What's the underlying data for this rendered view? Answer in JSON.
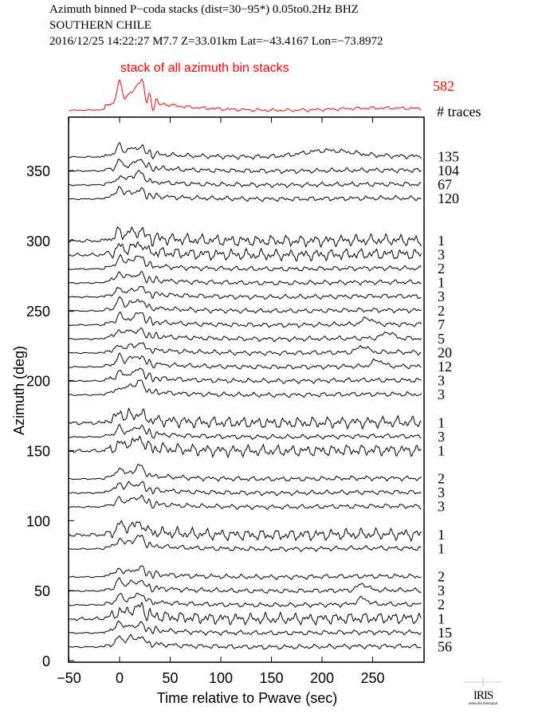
{
  "chart_data": {
    "type": "line",
    "title_lines": [
      "Azimuth binned P−coda stacks (dist=30−95*)  0.05to0.2Hz  BHZ",
      "SOUTHERN CHILE",
      "2016/12/25  14:22:27  M7.7  Z=33.01km Lat=−43.4167 Lon=−73.8972"
    ],
    "stack_label": "stack of all azimuth bin stacks",
    "stack_total_traces": "582",
    "traces_header": "# traces",
    "xlabel": "Time relative to Pwave (sec)",
    "ylabel": "Azimuth (deg)",
    "xlim": [
      -50,
      300
    ],
    "ylim": [
      0,
      380
    ],
    "xticks": [
      -50,
      0,
      50,
      100,
      150,
      200,
      250
    ],
    "xtick_labels": [
      "−50",
      "0",
      "50",
      "100",
      "150",
      "200",
      "250"
    ],
    "yticks": [
      0,
      50,
      100,
      150,
      200,
      250,
      300,
      350
    ],
    "ytick_labels": [
      "0",
      "50",
      "100",
      "150",
      "200",
      "250",
      "300",
      "350"
    ],
    "stack_color": "#ff0000",
    "trace_color": "#000000",
    "series": [
      {
        "azimuth": 360,
        "traces": "135",
        "late_bump_sec": 205
      },
      {
        "azimuth": 350,
        "traces": "104"
      },
      {
        "azimuth": 340,
        "traces": "67"
      },
      {
        "azimuth": 330,
        "traces": "120"
      },
      {
        "azimuth": 300,
        "traces": "1",
        "noisy": true
      },
      {
        "azimuth": 290,
        "traces": "3",
        "noisy": true
      },
      {
        "azimuth": 280,
        "traces": "2"
      },
      {
        "azimuth": 270,
        "traces": "1"
      },
      {
        "azimuth": 260,
        "traces": "3"
      },
      {
        "azimuth": 250,
        "traces": "2"
      },
      {
        "azimuth": 240,
        "traces": "7",
        "late_bump_sec": 245
      },
      {
        "azimuth": 230,
        "traces": "5",
        "late_bump_sec": 265
      },
      {
        "azimuth": 220,
        "traces": "20",
        "late_bump_sec": 240
      },
      {
        "azimuth": 210,
        "traces": "12",
        "late_bump_sec": 255
      },
      {
        "azimuth": 200,
        "traces": "3"
      },
      {
        "azimuth": 190,
        "traces": "3"
      },
      {
        "azimuth": 170,
        "traces": "1",
        "noisy": true
      },
      {
        "azimuth": 160,
        "traces": "3"
      },
      {
        "azimuth": 150,
        "traces": "1",
        "noisy": true
      },
      {
        "azimuth": 130,
        "traces": "2"
      },
      {
        "azimuth": 120,
        "traces": "3"
      },
      {
        "azimuth": 110,
        "traces": "3"
      },
      {
        "azimuth": 90,
        "traces": "1",
        "noisy": true
      },
      {
        "azimuth": 80,
        "traces": "1"
      },
      {
        "azimuth": 60,
        "traces": "2"
      },
      {
        "azimuth": 50,
        "traces": "3",
        "late_bump_sec": 240
      },
      {
        "azimuth": 40,
        "traces": "2",
        "late_bump_sec": 240
      },
      {
        "azimuth": 30,
        "traces": "1",
        "noisy": true
      },
      {
        "azimuth": 20,
        "traces": "15"
      },
      {
        "azimuth": 10,
        "traces": "56"
      }
    ]
  },
  "logo": {
    "text": "IRIS",
    "url_text": "www.iris.edu/spud"
  }
}
